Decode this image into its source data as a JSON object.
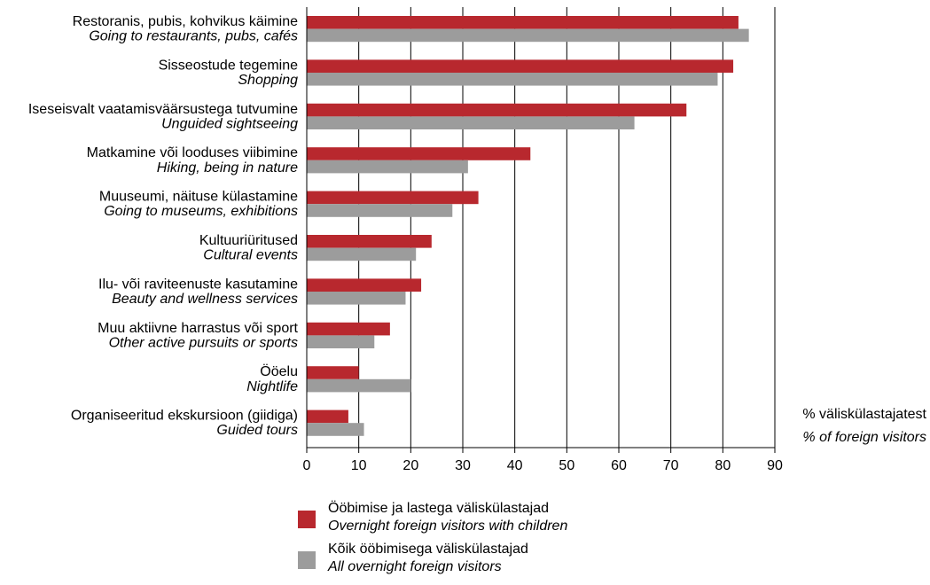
{
  "chart_data": {
    "type": "bar",
    "orientation": "horizontal",
    "categories": [
      {
        "et": "Restoranis, pubis, kohvikus käimine",
        "en": "Going to restaurants, pubs, cafés"
      },
      {
        "et": "Sisseostude tegemine",
        "en": "Shopping"
      },
      {
        "et": "Iseseisvalt vaatamisväärsustega tutvumine",
        "en": "Unguided sightseeing"
      },
      {
        "et": "Matkamine või looduses viibimine",
        "en": "Hiking, being in nature"
      },
      {
        "et": "Muuseumi, näituse külastamine",
        "en": "Going to museums, exhibitions"
      },
      {
        "et": "Kultuuriüritused",
        "en": "Cultural events"
      },
      {
        "et": "Ilu- või raviteenuste kasutamine",
        "en": "Beauty and wellness services"
      },
      {
        "et": "Muu aktiivne harrastus või sport",
        "en": "Other active pursuits or sports"
      },
      {
        "et": "Ööelu",
        "en": "Nightlife"
      },
      {
        "et": "Organiseeritud ekskursioon (giidiga)",
        "en": "Guided tours"
      }
    ],
    "series": [
      {
        "name_et": "Ööbimise ja lastega väliskülastajad",
        "name_en": "Overnight foreign visitors with children",
        "color": "#b8282e",
        "values": [
          83,
          82,
          73,
          43,
          33,
          24,
          22,
          16,
          10,
          8
        ]
      },
      {
        "name_et": "Kõik ööbimisega väliskülastajad",
        "name_en": "All overnight foreign visitors",
        "color": "#9c9c9c",
        "values": [
          85,
          79,
          63,
          31,
          28,
          21,
          19,
          13,
          20,
          11
        ]
      }
    ],
    "xlim": [
      0,
      90
    ],
    "xticks": [
      0,
      10,
      20,
      30,
      40,
      50,
      60,
      70,
      80,
      90
    ],
    "xlabel_et": "% väliskülastajatest",
    "xlabel_en": "% of foreign visitors",
    "grid": "vertical",
    "legend_position": "bottom"
  }
}
